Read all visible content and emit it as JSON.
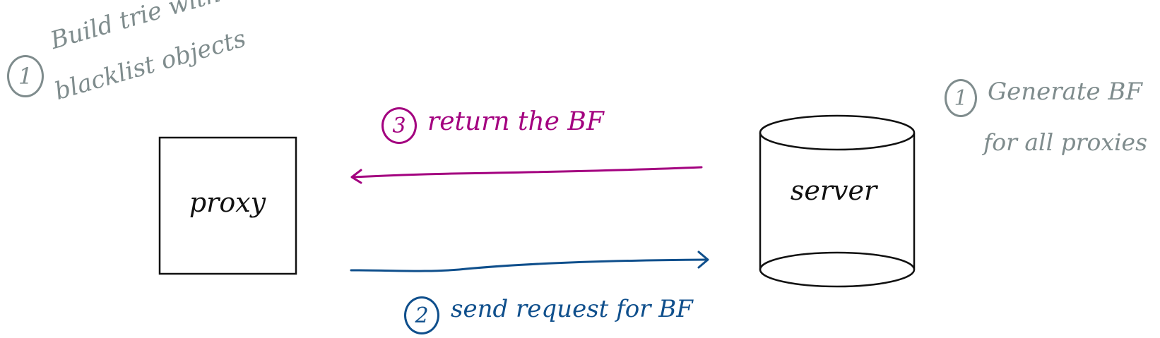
{
  "colors": {
    "ink": "#111111",
    "note_gray": "#7f8c8d",
    "response_magenta": "#a3007f",
    "request_blue": "#0f4f8c"
  },
  "nodes": {
    "proxy": {
      "label": "proxy",
      "shape": "rectangle"
    },
    "server": {
      "label": "server",
      "shape": "cylinder"
    }
  },
  "notes": {
    "proxy_step": {
      "number": "1",
      "line1": "Build trie with",
      "line2": "blacklist objects"
    },
    "server_step": {
      "number": "1",
      "line1": "Generate BF",
      "line2": "for all proxies"
    }
  },
  "arrows": {
    "response": {
      "number": "3",
      "label": "return the BF",
      "direction": "server-to-proxy"
    },
    "request": {
      "number": "2",
      "label": "send request for BF",
      "direction": "proxy-to-server"
    }
  }
}
